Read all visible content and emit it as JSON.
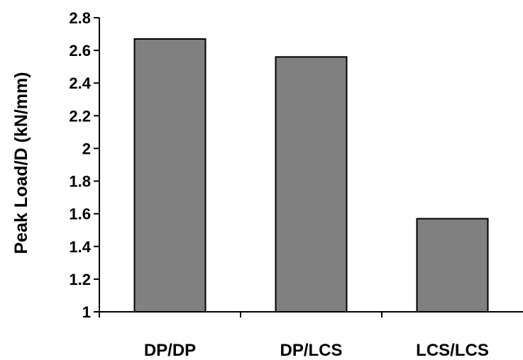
{
  "chart_data": {
    "type": "bar",
    "categories": [
      "DP/DP",
      "DP/LCS",
      "LCS/LCS"
    ],
    "values": [
      2.67,
      2.56,
      1.57
    ],
    "title": "",
    "xlabel": "",
    "ylabel": "Peak Load/D (kN/mm)",
    "ylim": [
      1,
      2.8
    ],
    "yticks": [
      1,
      1.2,
      1.4,
      1.6,
      1.8,
      2,
      2.2,
      2.4,
      2.6,
      2.8
    ],
    "ytick_labels": [
      "1",
      "1.2",
      "1.4",
      "1.6",
      "1.8",
      "2",
      "2.2",
      "2.4",
      "2.6",
      "2.8"
    ],
    "grid": false,
    "legend": "none",
    "colors": {
      "bar_fill": "#808080",
      "bar_stroke": "#000000",
      "axis": "#000000"
    }
  }
}
